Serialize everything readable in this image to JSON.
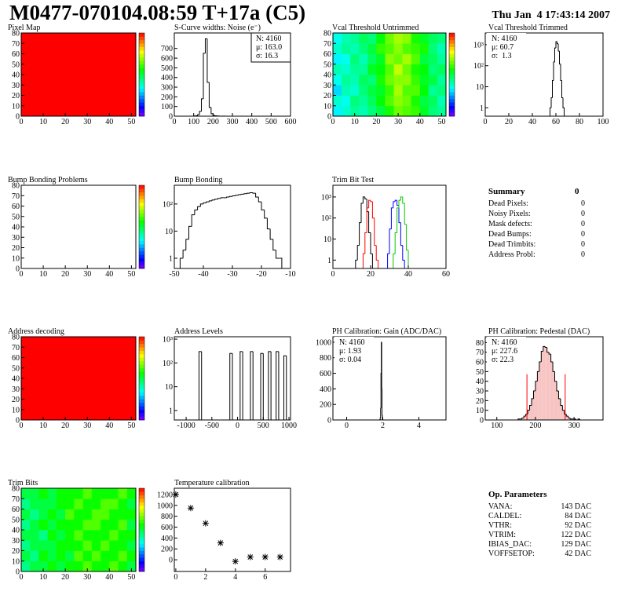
{
  "header": {
    "title": "M0477-070104.08:59 T+17a (C5)",
    "date": "Thu Jan  4 17:43:14 2007"
  },
  "chart_data": [
    {
      "type": "map",
      "title": "Pixel Map",
      "xlim": [
        0,
        52
      ],
      "ylim": [
        0,
        80
      ],
      "xticks": [
        0,
        10,
        20,
        30,
        40,
        50
      ],
      "yticks": [
        0,
        10,
        20,
        30,
        40,
        50,
        60,
        70,
        80
      ],
      "zlim": [
        0,
        10
      ],
      "values": [
        [
          10
        ]
      ]
    },
    {
      "type": "histogram",
      "title": "S-Curve widths: Noise (e⁻)",
      "log": false,
      "color": "#000000",
      "bins": [
        100,
        110,
        120,
        130,
        140,
        150,
        160,
        170,
        180,
        190,
        200,
        210,
        220,
        230,
        240,
        250,
        260
      ],
      "values": [
        2,
        5,
        15,
        50,
        180,
        650,
        800,
        350,
        90,
        25,
        8,
        4,
        2,
        1,
        0,
        1
      ],
      "xlim": [
        0,
        600
      ],
      "ylim": [
        0,
        860
      ],
      "xticks": [
        0,
        100,
        200,
        300,
        400,
        500,
        600
      ],
      "yticks": [
        0,
        100,
        200,
        300,
        400,
        500,
        600,
        700
      ],
      "stats": [
        "N: 4160",
        "μ: 163.0",
        "σ: 16.3"
      ],
      "stats_corner": "right"
    },
    {
      "type": "map",
      "title": "Vcal Threshold Untrimmed",
      "xlim": [
        0,
        52
      ],
      "ylim": [
        0,
        80
      ],
      "xticks": [
        0,
        10,
        20,
        30,
        40,
        50
      ],
      "yticks": [
        0,
        10,
        20,
        30,
        40,
        50,
        60,
        70,
        80
      ],
      "zlim": [
        95,
        135
      ],
      "values": [
        [
          108,
          110,
          112,
          111,
          113,
          115,
          118,
          121,
          120,
          119,
          116,
          113,
          112
        ],
        [
          110,
          109,
          113,
          112,
          114,
          117,
          120,
          122,
          121,
          118,
          115,
          114,
          111
        ],
        [
          107,
          111,
          110,
          113,
          115,
          116,
          119,
          123,
          120,
          120,
          117,
          112,
          113
        ],
        [
          109,
          112,
          111,
          114,
          113,
          118,
          121,
          122,
          122,
          119,
          116,
          115,
          112
        ],
        [
          111,
          110,
          112,
          112,
          116,
          117,
          120,
          124,
          121,
          118,
          117,
          113,
          114
        ],
        [
          108,
          109,
          113,
          111,
          114,
          116,
          122,
          121,
          123,
          120,
          115,
          114,
          112
        ],
        [
          110,
          112,
          111,
          113,
          115,
          119,
          120,
          122,
          120,
          119,
          118,
          113,
          111
        ],
        [
          109,
          111,
          112,
          114,
          113,
          117,
          121,
          123,
          122,
          118,
          116,
          114,
          113
        ]
      ]
    },
    {
      "type": "histogram",
      "title": "Vcal Threshold Trimmed",
      "log": true,
      "color": "#000000",
      "bins": [
        55,
        56,
        57,
        58,
        59,
        60,
        61,
        62,
        63,
        64,
        65,
        66,
        67
      ],
      "values": [
        1,
        3,
        20,
        150,
        700,
        1400,
        1100,
        500,
        120,
        20,
        3,
        1
      ],
      "xlim": [
        0,
        100
      ],
      "ylim": [
        0.4,
        3600
      ],
      "xticks": [
        0,
        20,
        40,
        60,
        80,
        100
      ],
      "yticks": [
        1,
        10,
        {
          "value": 100,
          "label": "10²"
        },
        {
          "value": 1000,
          "label": "10³"
        }
      ],
      "stats": [
        "N: 4160",
        "μ: 60.7",
        "σ:  1.3"
      ],
      "stats_corner": "left"
    },
    {
      "type": "map",
      "title": "Bump Bonding Problems",
      "xlim": [
        0,
        52
      ],
      "ylim": [
        0,
        80
      ],
      "xticks": [
        0,
        10,
        20,
        30,
        40,
        50
      ],
      "yticks": [
        0,
        10,
        20,
        30,
        40,
        50,
        60,
        70,
        80
      ]
    },
    {
      "type": "histogram",
      "title": "Bump Bonding",
      "log": true,
      "color": "#000000",
      "bins": [
        -48,
        -47,
        -46,
        -45,
        -44,
        -43,
        -42,
        -41,
        -40,
        -39,
        -38,
        -37,
        -36,
        -35,
        -34,
        -33,
        -32,
        -31,
        -30,
        -29,
        -28,
        -27,
        -26,
        -25,
        -24,
        -23,
        -22,
        -21,
        -20,
        -19,
        -18,
        -17,
        -16,
        -15,
        -14,
        -13
      ],
      "values": [
        1,
        2,
        5,
        15,
        40,
        60,
        80,
        100,
        110,
        120,
        130,
        140,
        150,
        160,
        170,
        170,
        180,
        190,
        200,
        210,
        220,
        230,
        240,
        250,
        260,
        250,
        180,
        120,
        60,
        30,
        12,
        5,
        2,
        1,
        1
      ],
      "xlim": [
        -50,
        -10
      ],
      "ylim": [
        0.42,
        490
      ],
      "xticks": [
        -50,
        -40,
        -30,
        -20,
        -10
      ],
      "yticks": [
        1,
        10,
        {
          "value": 100,
          "label": "10²"
        }
      ]
    },
    {
      "type": "histogram",
      "title": "Trim Bit Test",
      "log": true,
      "bins": [
        10,
        11,
        12,
        13,
        14,
        15,
        16,
        17,
        18,
        19,
        20,
        21,
        22,
        23,
        24,
        25,
        26,
        27,
        28,
        29,
        30,
        31,
        32,
        33,
        34,
        35,
        36,
        37,
        38,
        39,
        40,
        41,
        42
      ],
      "series": [
        {
          "color": "#000000",
          "values": [
            0,
            0,
            1,
            5,
            60,
            500,
            1000,
            800,
            200,
            20,
            2,
            0,
            0,
            0,
            0,
            0,
            0,
            0,
            0,
            0,
            0,
            0,
            0,
            0,
            0,
            0,
            0,
            0,
            0,
            0,
            0,
            0
          ]
        },
        {
          "color": "#ff0000",
          "values": [
            0,
            0,
            0,
            0,
            0,
            0,
            2,
            20,
            300,
            700,
            600,
            100,
            5,
            1,
            0,
            0,
            0,
            0,
            0,
            0,
            0,
            0,
            0,
            0,
            0,
            0,
            0,
            0,
            0,
            0,
            0,
            0
          ]
        },
        {
          "color": "#0000ff",
          "values": [
            0,
            0,
            0,
            0,
            0,
            0,
            0,
            0,
            0,
            0,
            0,
            0,
            0,
            0,
            0,
            0,
            0,
            0,
            0,
            2,
            30,
            300,
            600,
            700,
            400,
            60,
            5,
            1,
            0,
            0,
            0,
            0
          ]
        },
        {
          "color": "#00cc00",
          "values": [
            0,
            0,
            0,
            0,
            0,
            0,
            0,
            0,
            0,
            0,
            0,
            0,
            0,
            0,
            0,
            0,
            0,
            0,
            0,
            0,
            0,
            0,
            2,
            20,
            300,
            700,
            1000,
            500,
            50,
            3,
            0,
            0
          ]
        }
      ],
      "xlim": [
        0,
        60
      ],
      "ylim": [
        0.4,
        3600
      ],
      "xticks": [
        0,
        20,
        40,
        60
      ],
      "yticks": [
        1,
        10,
        {
          "value": 100,
          "label": "10²"
        },
        {
          "value": 1000,
          "label": "10³"
        }
      ]
    },
    {
      "type": "map",
      "title": "Address decoding",
      "xlim": [
        0,
        52
      ],
      "ylim": [
        0,
        80
      ],
      "xticks": [
        0,
        10,
        20,
        30,
        40,
        50
      ],
      "yticks": [
        0,
        10,
        20,
        30,
        40,
        50,
        60,
        70,
        80
      ],
      "zlim": [
        0,
        1
      ],
      "values": [
        [
          1
        ]
      ]
    },
    {
      "type": "histogram",
      "title": "Address Levels",
      "log": true,
      "color": "#000000",
      "bins": [
        -800,
        -750,
        -700,
        -650,
        -600,
        -550,
        -500,
        -450,
        -400,
        -350,
        -300,
        -250,
        -200,
        -150,
        -100,
        -50,
        0,
        50,
        100,
        150,
        200,
        250,
        300,
        350,
        400,
        450,
        500,
        550,
        600,
        650,
        700,
        750,
        800,
        850,
        900,
        950,
        1000
      ],
      "values": [
        0,
        300,
        0,
        0,
        0,
        0,
        0,
        0,
        0,
        0,
        0,
        0,
        0,
        250,
        0,
        0,
        0,
        300,
        0,
        0,
        0,
        300,
        0,
        0,
        0,
        250,
        0,
        0,
        300,
        0,
        0,
        300,
        0,
        0,
        200,
        0
      ],
      "xlim": [
        -1230,
        1030
      ],
      "ylim": [
        0.4,
        1260
      ],
      "xticks": [
        -1000,
        -500,
        0,
        500,
        1000
      ],
      "yticks": [
        1,
        10,
        {
          "value": 100,
          "label": "10²"
        },
        {
          "value": 1000,
          "label": "10³"
        }
      ]
    },
    {
      "type": "histogram",
      "title": "PH Calibration: Gain (ADC/DAC)",
      "log": false,
      "color": "#000000",
      "bins": [
        1.84,
        1.86,
        1.88,
        1.9,
        1.92,
        1.94,
        1.96,
        1.98,
        2.0,
        2.02
      ],
      "values": [
        5,
        30,
        150,
        600,
        1000,
        400,
        60,
        5,
        1
      ],
      "xlim": [
        -0.76,
        5.5
      ],
      "ylim": [
        0,
        1070
      ],
      "xticks": [
        0,
        2,
        4
      ],
      "yticks": [
        0,
        200,
        400,
        600,
        800,
        1000
      ],
      "stats": [
        "N: 4160",
        "μ: 1.93",
        "σ: 0.04"
      ],
      "stats_corner": "left"
    },
    {
      "type": "histogram",
      "title": "PH Calibration: Pedestal (DAC)",
      "log": false,
      "color": "#000000",
      "fill_color": "#f7c4c4",
      "bins": [
        150,
        155,
        160,
        165,
        170,
        175,
        180,
        185,
        190,
        195,
        200,
        205,
        210,
        215,
        220,
        225,
        230,
        235,
        240,
        245,
        250,
        255,
        260,
        265,
        270,
        275,
        280,
        285,
        290,
        295,
        300,
        305,
        310,
        315,
        320
      ],
      "values": [
        0,
        1,
        1,
        2,
        4,
        6,
        10,
        15,
        22,
        30,
        40,
        50,
        60,
        71,
        76,
        75,
        70,
        68,
        60,
        50,
        40,
        30,
        22,
        15,
        10,
        6,
        4,
        2,
        1,
        1,
        1,
        0,
        1,
        0
      ],
      "fit_range": [
        178,
        277
      ],
      "fit_color": "#ff0000",
      "xlim": [
        70,
        375
      ],
      "ylim": [
        0,
        86
      ],
      "xticks": [
        100,
        200,
        300
      ],
      "yticks": [
        0,
        10,
        20,
        30,
        40,
        50,
        60,
        70,
        80
      ],
      "stats": [
        "N: 4160",
        "μ: 227.6",
        "σ: 22.3"
      ],
      "stats_colors": [
        "#000000",
        "#ff0000",
        "#ff0000"
      ],
      "stats_corner": "left"
    },
    {
      "type": "map",
      "title": "Trim Bits",
      "xlim": [
        0,
        52
      ],
      "ylim": [
        0,
        80
      ],
      "xticks": [
        0,
        10,
        20,
        30,
        40,
        50
      ],
      "yticks": [
        0,
        10,
        20,
        30,
        40,
        50,
        60,
        70,
        80
      ],
      "zlim": [
        0,
        16
      ],
      "values": [
        [
          7,
          8,
          8,
          9,
          8,
          9,
          9,
          10,
          9,
          9,
          10,
          9,
          8
        ],
        [
          8,
          7,
          9,
          8,
          9,
          8,
          10,
          9,
          10,
          9,
          9,
          10,
          9
        ],
        [
          7,
          8,
          8,
          8,
          9,
          9,
          9,
          10,
          9,
          10,
          9,
          9,
          8
        ],
        [
          8,
          8,
          7,
          9,
          8,
          9,
          10,
          9,
          9,
          9,
          10,
          9,
          9
        ],
        [
          7,
          8,
          9,
          8,
          9,
          9,
          9,
          10,
          10,
          9,
          9,
          10,
          8
        ],
        [
          8,
          7,
          8,
          9,
          8,
          10,
          9,
          9,
          10,
          10,
          9,
          9,
          9
        ],
        [
          7,
          8,
          8,
          8,
          9,
          9,
          10,
          9,
          9,
          10,
          10,
          9,
          8
        ],
        [
          8,
          8,
          9,
          8,
          9,
          9,
          9,
          10,
          9,
          9,
          9,
          10,
          9
        ]
      ]
    },
    {
      "type": "scatter",
      "title": "Temperature calibration",
      "color": "#000000",
      "x": [
        0,
        1,
        2,
        3,
        4,
        5,
        6,
        7
      ],
      "values": [
        1200,
        950,
        670,
        310,
        -30,
        50,
        50,
        50
      ],
      "xlim": [
        -0.1,
        7.7
      ],
      "ylim": [
        -215,
        1315
      ],
      "xticks": [
        0,
        2,
        4,
        6
      ],
      "yticks": [
        0,
        200,
        400,
        600,
        800,
        1000,
        1200
      ]
    }
  ],
  "summary": {
    "title": "Summary",
    "value": 0,
    "rows": [
      [
        "Dead Pixels:",
        0
      ],
      [
        "Noisy Pixels:",
        0
      ],
      [
        "Mask defects:",
        0
      ],
      [
        "Dead Bumps:",
        0
      ],
      [
        "Dead Trimbits:",
        0
      ],
      [
        "Address Probl:",
        0
      ]
    ]
  },
  "op_parameters": {
    "title": "Op. Parameters",
    "rows": [
      [
        "VANA:",
        "143 DAC"
      ],
      [
        "CALDEL:",
        "84 DAC"
      ],
      [
        "VTHR:",
        "92 DAC"
      ],
      [
        "VTRIM:",
        "122 DAC"
      ],
      [
        "IBIAS_DAC:",
        "129 DAC"
      ],
      [
        "VOFFSETOP:",
        "42 DAC"
      ]
    ]
  }
}
